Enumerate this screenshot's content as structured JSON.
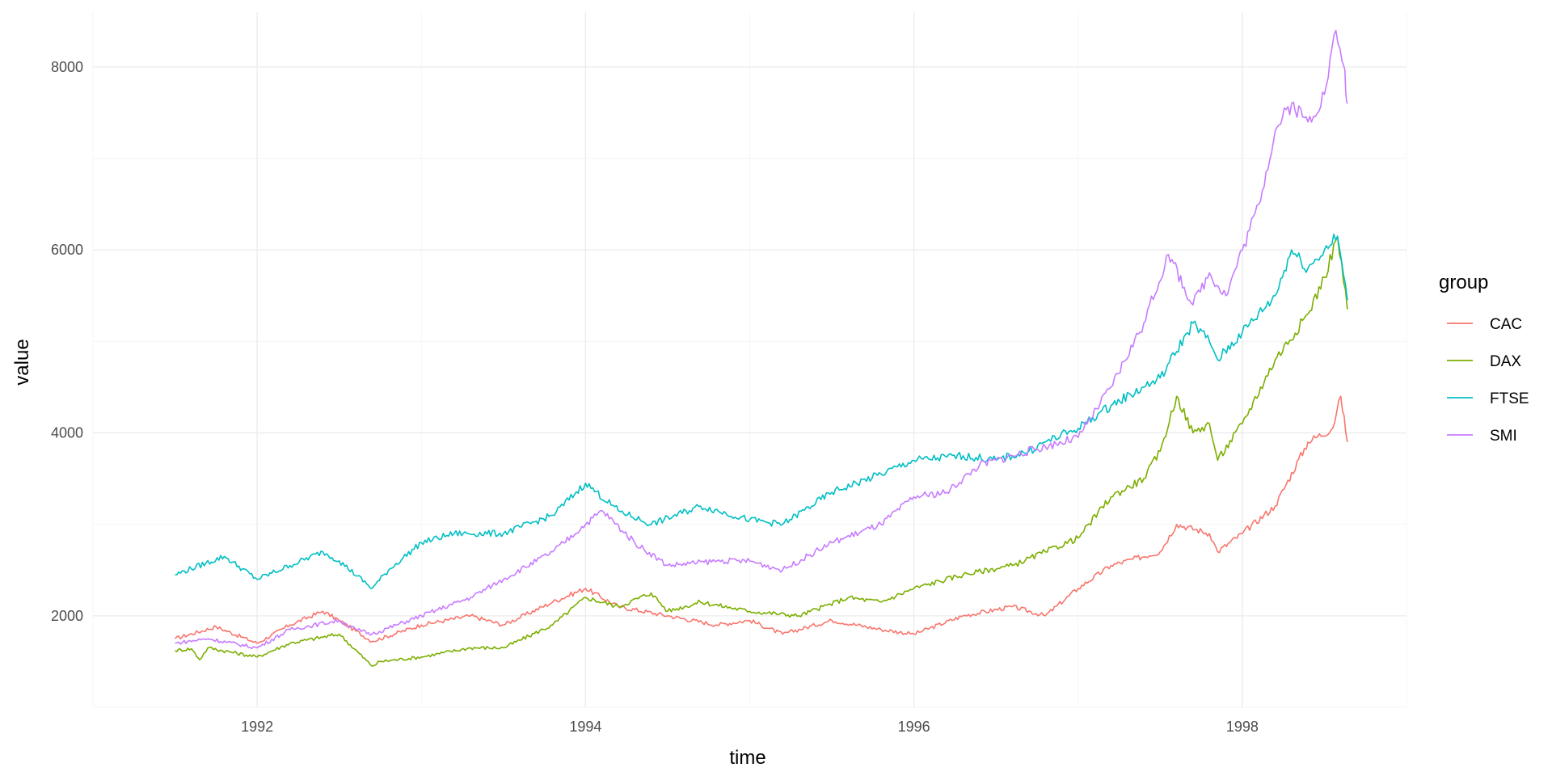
{
  "chart_data": {
    "type": "line",
    "title": "",
    "xlabel": "time",
    "ylabel": "value",
    "xlim": [
      1991.0,
      1999.0
    ],
    "ylim": [
      1000,
      8600
    ],
    "x_ticks": [
      1992,
      1994,
      1996,
      1998
    ],
    "x_tick_labels": [
      "1992",
      "1994",
      "1996",
      "1998"
    ],
    "y_ticks": [
      2000,
      4000,
      6000,
      8000
    ],
    "y_tick_labels": [
      "2000",
      "4000",
      "6000",
      "8000"
    ],
    "grid": true,
    "legend": {
      "title": "group",
      "position": "right"
    },
    "series": [
      {
        "name": "CAC",
        "color": "#F8766D",
        "x": [
          1991.5,
          1991.75,
          1992.0,
          1992.2,
          1992.4,
          1992.5,
          1992.7,
          1993.0,
          1993.3,
          1993.5,
          1993.8,
          1994.0,
          1994.2,
          1994.5,
          1994.8,
          1995.0,
          1995.2,
          1995.5,
          1995.8,
          1996.0,
          1996.3,
          1996.6,
          1996.8,
          1997.0,
          1997.2,
          1997.5,
          1997.6,
          1997.8,
          1997.85,
          1998.0,
          1998.2,
          1998.4,
          1998.55,
          1998.6,
          1998.64
        ],
        "y": [
          1750,
          1880,
          1700,
          1900,
          2050,
          1950,
          1720,
          1900,
          2000,
          1900,
          2150,
          2300,
          2100,
          2000,
          1900,
          1950,
          1800,
          1950,
          1850,
          1800,
          2000,
          2100,
          2000,
          2300,
          2550,
          2700,
          3000,
          2900,
          2700,
          2900,
          3200,
          3900,
          4050,
          4400,
          3900
        ]
      },
      {
        "name": "DAX",
        "color": "#7CAE00",
        "x": [
          1991.5,
          1991.6,
          1991.65,
          1991.7,
          1992.0,
          1992.2,
          1992.5,
          1992.7,
          1992.75,
          1993.0,
          1993.3,
          1993.5,
          1993.8,
          1994.0,
          1994.2,
          1994.4,
          1994.5,
          1994.7,
          1995.0,
          1995.3,
          1995.6,
          1995.8,
          1996.0,
          1996.3,
          1996.6,
          1996.8,
          1997.0,
          1997.2,
          1997.4,
          1997.5,
          1997.6,
          1997.7,
          1997.8,
          1997.85,
          1998.0,
          1998.2,
          1998.4,
          1998.5,
          1998.58,
          1998.64
        ],
        "y": [
          1620,
          1640,
          1520,
          1650,
          1550,
          1700,
          1800,
          1450,
          1500,
          1550,
          1650,
          1650,
          1900,
          2200,
          2100,
          2250,
          2050,
          2150,
          2050,
          2000,
          2200,
          2150,
          2300,
          2450,
          2550,
          2700,
          2850,
          3300,
          3500,
          3800,
          4400,
          4000,
          4100,
          3700,
          4100,
          4800,
          5300,
          5700,
          6150,
          5350
        ]
      },
      {
        "name": "FTSE",
        "color": "#00BFC4",
        "x": [
          1991.5,
          1991.8,
          1992.0,
          1992.2,
          1992.4,
          1992.5,
          1992.7,
          1992.8,
          1993.0,
          1993.2,
          1993.5,
          1993.8,
          1994.0,
          1994.2,
          1994.4,
          1994.7,
          1995.0,
          1995.2,
          1995.5,
          1995.8,
          1996.0,
          1996.3,
          1996.5,
          1996.7,
          1996.8,
          1997.0,
          1997.2,
          1997.4,
          1997.5,
          1997.7,
          1997.8,
          1997.85,
          1998.0,
          1998.2,
          1998.3,
          1998.4,
          1998.5,
          1998.58,
          1998.64
        ],
        "y": [
          2450,
          2650,
          2400,
          2550,
          2700,
          2600,
          2300,
          2500,
          2800,
          2900,
          2900,
          3100,
          3450,
          3150,
          3000,
          3200,
          3050,
          3000,
          3350,
          3550,
          3700,
          3750,
          3700,
          3800,
          3900,
          4050,
          4300,
          4500,
          4600,
          5200,
          5000,
          4800,
          5100,
          5500,
          6000,
          5800,
          6000,
          6150,
          5450
        ]
      },
      {
        "name": "SMI",
        "color": "#C77CFF",
        "x": [
          1991.5,
          1991.7,
          1992.0,
          1992.2,
          1992.5,
          1992.6,
          1992.7,
          1993.0,
          1993.3,
          1993.5,
          1993.8,
          1994.0,
          1994.1,
          1994.3,
          1994.5,
          1994.8,
          1995.0,
          1995.2,
          1995.5,
          1995.8,
          1996.0,
          1996.2,
          1996.4,
          1996.6,
          1996.8,
          1997.0,
          1997.2,
          1997.4,
          1997.55,
          1997.7,
          1997.8,
          1997.9,
          1998.0,
          1998.1,
          1998.2,
          1998.3,
          1998.4,
          1998.5,
          1998.57,
          1998.62,
          1998.64
        ],
        "y": [
          1700,
          1750,
          1650,
          1850,
          1950,
          1850,
          1800,
          2000,
          2200,
          2400,
          2700,
          3000,
          3150,
          2800,
          2550,
          2600,
          2600,
          2500,
          2800,
          3000,
          3300,
          3350,
          3650,
          3750,
          3850,
          3950,
          4500,
          5200,
          5950,
          5400,
          5750,
          5500,
          6000,
          6500,
          7300,
          7600,
          7400,
          7700,
          8400,
          8000,
          7600
        ]
      }
    ]
  }
}
